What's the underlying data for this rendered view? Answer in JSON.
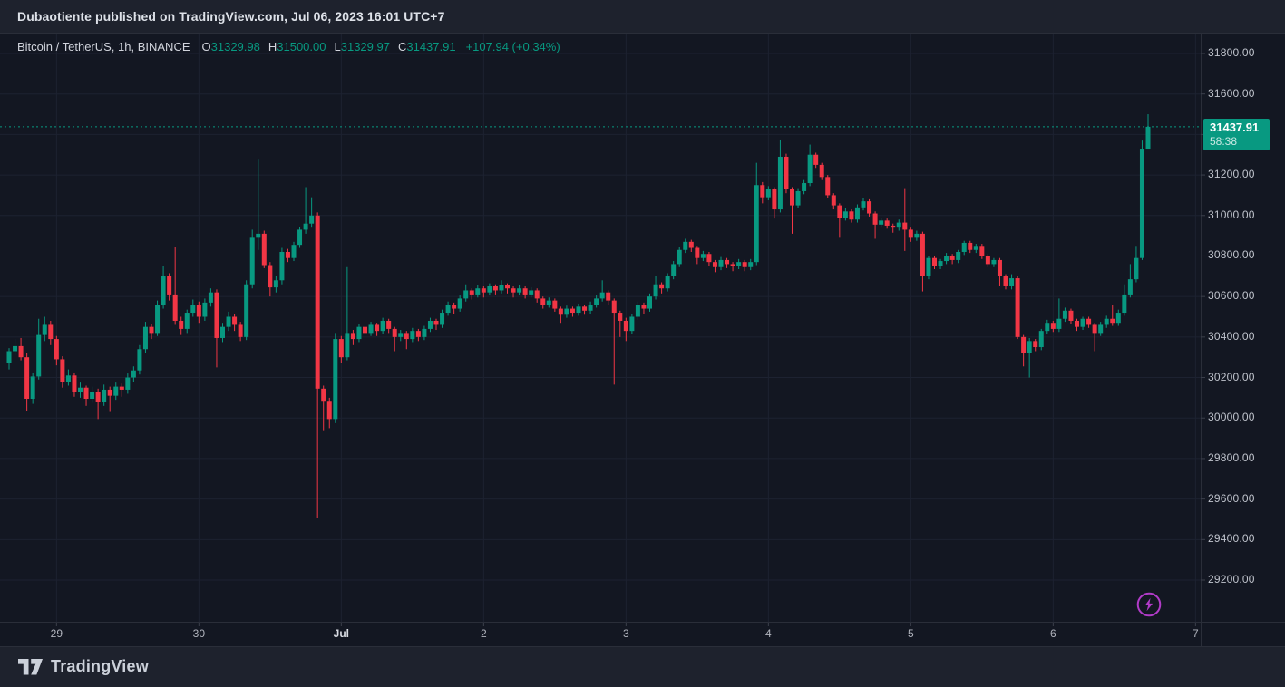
{
  "header": {
    "text": "Dubaotiente published on TradingView.com, Jul 06, 2023 16:01 UTC+7"
  },
  "legend": {
    "symbol_text": "Bitcoin / TetherUS, 1h, BINANCE",
    "ohlc": [
      {
        "label": "O",
        "value": "31329.98"
      },
      {
        "label": "H",
        "value": "31500.00"
      },
      {
        "label": "L",
        "value": "31329.97"
      },
      {
        "label": "C",
        "value": "31437.91"
      }
    ],
    "change": "+107.94 (+0.34%)"
  },
  "price_tag": {
    "price": "31437.91",
    "countdown": "58:38"
  },
  "footer": {
    "brand": "TradingView"
  },
  "colors": {
    "up": "#089981",
    "down": "#f23645",
    "price_line": "#089981",
    "tag_bg": "#089981",
    "grid": "#1d2231",
    "border": "#2a2e39",
    "tick": "#3c404c",
    "watermark": "#b13bc8",
    "page_bg": "#1e222d",
    "chart_bg": "#131722"
  },
  "chart_data": {
    "type": "candlestick",
    "symbol": "Bitcoin / TetherUS",
    "interval": "1h",
    "exchange": "BINANCE",
    "title": "Bitcoin / TetherUS, 1h, BINANCE",
    "last_price": 31437.91,
    "open": 31329.98,
    "high": 31500.0,
    "low": 31329.97,
    "close": 31437.91,
    "change": "+107.94 (+0.34%)",
    "price_line": {
      "value": 31437.91,
      "countdown": "58:38"
    },
    "grid": true,
    "ylim": [
      28990,
      31900
    ],
    "y_axis": {
      "ticks": [
        {
          "value": 31800,
          "label": "31800.00"
        },
        {
          "value": 31600,
          "label": "31600.00"
        },
        {
          "value": 31400,
          "label": ""
        },
        {
          "value": 31200,
          "label": "31200.00"
        },
        {
          "value": 31000,
          "label": "31000.00"
        },
        {
          "value": 30800,
          "label": "30800.00"
        },
        {
          "value": 30600,
          "label": "30600.00"
        },
        {
          "value": 30400,
          "label": "30400.00"
        },
        {
          "value": 30200,
          "label": "30200.00"
        },
        {
          "value": 30000,
          "label": "30000.00"
        },
        {
          "value": 29800,
          "label": "29800.00"
        },
        {
          "value": 29600,
          "label": "29600.00"
        },
        {
          "value": 29400,
          "label": "29400.00"
        },
        {
          "value": 29200,
          "label": "29200.00"
        }
      ]
    },
    "x_axis": {
      "ticks": [
        {
          "label": "29",
          "index": 8,
          "bold": false
        },
        {
          "label": "30",
          "index": 32,
          "bold": false
        },
        {
          "label": "Jul",
          "index": 56,
          "bold": true
        },
        {
          "label": "2",
          "index": 80,
          "bold": false
        },
        {
          "label": "3",
          "index": 104,
          "bold": false
        },
        {
          "label": "4",
          "index": 128,
          "bold": false
        },
        {
          "label": "5",
          "index": 152,
          "bold": false
        },
        {
          "label": "6",
          "index": 176,
          "bold": false
        },
        {
          "label": "7",
          "index": 200,
          "bold": false
        }
      ]
    },
    "candles": [
      [
        30270,
        30345,
        30240,
        30330
      ],
      [
        30330,
        30390,
        30310,
        30355
      ],
      [
        30355,
        30395,
        30285,
        30300
      ],
      [
        30300,
        30320,
        30035,
        30095
      ],
      [
        30095,
        30225,
        30070,
        30205
      ],
      [
        30205,
        30490,
        30190,
        30410
      ],
      [
        30410,
        30500,
        30380,
        30460
      ],
      [
        30460,
        30480,
        30360,
        30390
      ],
      [
        30390,
        30405,
        30260,
        30290
      ],
      [
        30290,
        30305,
        30150,
        30180
      ],
      [
        30180,
        30240,
        30160,
        30210
      ],
      [
        30210,
        30225,
        30105,
        30130
      ],
      [
        30130,
        30175,
        30100,
        30150
      ],
      [
        30150,
        30160,
        30060,
        30095
      ],
      [
        30095,
        30155,
        30075,
        30130
      ],
      [
        30130,
        30145,
        29995,
        30080
      ],
      [
        30080,
        30165,
        30060,
        30140
      ],
      [
        30140,
        30155,
        30030,
        30110
      ],
      [
        30110,
        30175,
        30090,
        30155
      ],
      [
        30155,
        30170,
        30105,
        30140
      ],
      [
        30140,
        30220,
        30120,
        30200
      ],
      [
        30200,
        30255,
        30180,
        30235
      ],
      [
        30235,
        30360,
        30215,
        30340
      ],
      [
        30340,
        30475,
        30320,
        30450
      ],
      [
        30450,
        30465,
        30390,
        30420
      ],
      [
        30420,
        30580,
        30405,
        30560
      ],
      [
        30560,
        30750,
        30540,
        30700
      ],
      [
        30700,
        30715,
        30580,
        30610
      ],
      [
        30610,
        30845,
        30460,
        30480
      ],
      [
        30480,
        30500,
        30410,
        30440
      ],
      [
        30440,
        30535,
        30420,
        30520
      ],
      [
        30520,
        30585,
        30500,
        30560
      ],
      [
        30560,
        30575,
        30470,
        30500
      ],
      [
        30500,
        30590,
        30480,
        30570
      ],
      [
        30570,
        30640,
        30550,
        30620
      ],
      [
        30620,
        30635,
        30250,
        30395
      ],
      [
        30395,
        30470,
        30375,
        30450
      ],
      [
        30450,
        30525,
        30430,
        30500
      ],
      [
        30500,
        30515,
        30430,
        30460
      ],
      [
        30460,
        30475,
        30380,
        30400
      ],
      [
        30400,
        30680,
        30385,
        30660
      ],
      [
        30660,
        30930,
        30640,
        30890
      ],
      [
        30890,
        31280,
        30830,
        30910
      ],
      [
        30910,
        30925,
        30740,
        30755
      ],
      [
        30755,
        30770,
        30600,
        30645
      ],
      [
        30645,
        30700,
        30620,
        30680
      ],
      [
        30680,
        30840,
        30660,
        30820
      ],
      [
        30820,
        30835,
        30770,
        30790
      ],
      [
        30790,
        30870,
        30775,
        30855
      ],
      [
        30855,
        30945,
        30840,
        30930
      ],
      [
        30930,
        31140,
        30910,
        30960
      ],
      [
        30960,
        31090,
        30940,
        31000
      ],
      [
        31000,
        31015,
        29505,
        30145
      ],
      [
        30145,
        30160,
        29940,
        30085
      ],
      [
        30085,
        30100,
        29950,
        29995
      ],
      [
        29995,
        30420,
        29975,
        30390
      ],
      [
        30390,
        30405,
        30270,
        30300
      ],
      [
        30300,
        30745,
        30285,
        30420
      ],
      [
        30420,
        30435,
        30360,
        30390
      ],
      [
        30390,
        30465,
        30375,
        30450
      ],
      [
        30450,
        30460,
        30395,
        30420
      ],
      [
        30420,
        30475,
        30405,
        30460
      ],
      [
        30460,
        30470,
        30405,
        30430
      ],
      [
        30430,
        30495,
        30415,
        30480
      ],
      [
        30480,
        30490,
        30420,
        30440
      ],
      [
        30440,
        30450,
        30330,
        30400
      ],
      [
        30400,
        30435,
        30380,
        30420
      ],
      [
        30420,
        30430,
        30340,
        30390
      ],
      [
        30390,
        30445,
        30375,
        30430
      ],
      [
        30430,
        30440,
        30380,
        30400
      ],
      [
        30400,
        30455,
        30385,
        30440
      ],
      [
        30440,
        30495,
        30425,
        30480
      ],
      [
        30480,
        30490,
        30435,
        30460
      ],
      [
        30460,
        30535,
        30445,
        30520
      ],
      [
        30520,
        30575,
        30505,
        30560
      ],
      [
        30560,
        30570,
        30515,
        30540
      ],
      [
        30540,
        30605,
        30525,
        30590
      ],
      [
        30590,
        30660,
        30575,
        30630
      ],
      [
        30630,
        30640,
        30585,
        30610
      ],
      [
        30610,
        30655,
        30595,
        30640
      ],
      [
        30640,
        30650,
        30595,
        30620
      ],
      [
        30620,
        30665,
        30605,
        30650
      ],
      [
        30650,
        30660,
        30610,
        30630
      ],
      [
        30630,
        30680,
        30615,
        30655
      ],
      [
        30655,
        30665,
        30615,
        30640
      ],
      [
        30640,
        30650,
        30595,
        30620
      ],
      [
        30620,
        30655,
        30605,
        30640
      ],
      [
        30640,
        30650,
        30590,
        30610
      ],
      [
        30610,
        30645,
        30595,
        30630
      ],
      [
        30630,
        30640,
        30570,
        30590
      ],
      [
        30590,
        30600,
        30540,
        30560
      ],
      [
        30560,
        30595,
        30545,
        30580
      ],
      [
        30580,
        30590,
        30525,
        30540
      ],
      [
        30540,
        30550,
        30470,
        30510
      ],
      [
        30510,
        30555,
        30495,
        30540
      ],
      [
        30540,
        30550,
        30500,
        30520
      ],
      [
        30520,
        30565,
        30505,
        30550
      ],
      [
        30550,
        30560,
        30510,
        30530
      ],
      [
        30530,
        30575,
        30515,
        30560
      ],
      [
        30560,
        30605,
        30545,
        30590
      ],
      [
        30590,
        30680,
        30575,
        30620
      ],
      [
        30620,
        30630,
        30560,
        30580
      ],
      [
        30580,
        30590,
        30165,
        30520
      ],
      [
        30520,
        30530,
        30400,
        30480
      ],
      [
        30480,
        30495,
        30380,
        30430
      ],
      [
        30430,
        30515,
        30415,
        30500
      ],
      [
        30500,
        30575,
        30485,
        30560
      ],
      [
        30560,
        30570,
        30515,
        30540
      ],
      [
        30540,
        30615,
        30525,
        30600
      ],
      [
        30600,
        30700,
        30585,
        30660
      ],
      [
        30660,
        30670,
        30615,
        30640
      ],
      [
        30640,
        30715,
        30625,
        30700
      ],
      [
        30700,
        30775,
        30685,
        30760
      ],
      [
        30760,
        30845,
        30745,
        30830
      ],
      [
        30830,
        30885,
        30815,
        30870
      ],
      [
        30870,
        30880,
        30820,
        30840
      ],
      [
        30840,
        30850,
        30760,
        30790
      ],
      [
        30790,
        30825,
        30775,
        30810
      ],
      [
        30810,
        30820,
        30750,
        30770
      ],
      [
        30770,
        30780,
        30720,
        30745
      ],
      [
        30745,
        30795,
        30730,
        30780
      ],
      [
        30780,
        30790,
        30740,
        30760
      ],
      [
        30760,
        30770,
        30725,
        30750
      ],
      [
        30750,
        30785,
        30735,
        30770
      ],
      [
        30770,
        30780,
        30725,
        30745
      ],
      [
        30745,
        30785,
        30730,
        30770
      ],
      [
        30770,
        31260,
        30755,
        31150
      ],
      [
        31150,
        31165,
        31060,
        31090
      ],
      [
        31090,
        31145,
        31075,
        31130
      ],
      [
        31130,
        31140,
        30985,
        31030
      ],
      [
        31030,
        31375,
        31015,
        31290
      ],
      [
        31290,
        31305,
        31110,
        31130
      ],
      [
        31130,
        31140,
        30910,
        31050
      ],
      [
        31050,
        31135,
        31035,
        31120
      ],
      [
        31120,
        31175,
        31105,
        31160
      ],
      [
        31160,
        31350,
        31145,
        31300
      ],
      [
        31300,
        31310,
        31235,
        31250
      ],
      [
        31250,
        31260,
        31175,
        31190
      ],
      [
        31190,
        31200,
        31085,
        31100
      ],
      [
        31100,
        31110,
        31030,
        31050
      ],
      [
        31050,
        31060,
        30890,
        30990
      ],
      [
        30990,
        31035,
        30975,
        31020
      ],
      [
        31020,
        31030,
        30965,
        30980
      ],
      [
        30980,
        31055,
        30965,
        31040
      ],
      [
        31040,
        31085,
        31025,
        31070
      ],
      [
        31070,
        31080,
        30995,
        31010
      ],
      [
        31010,
        31020,
        30885,
        30955
      ],
      [
        30955,
        30990,
        30940,
        30975
      ],
      [
        30975,
        30985,
        30935,
        30950
      ],
      [
        30950,
        30960,
        30915,
        30940
      ],
      [
        30940,
        30980,
        30925,
        30965
      ],
      [
        30965,
        31135,
        30825,
        30930
      ],
      [
        30930,
        30940,
        30870,
        30890
      ],
      [
        30890,
        30925,
        30875,
        30910
      ],
      [
        30910,
        30920,
        30625,
        30700
      ],
      [
        30700,
        30800,
        30685,
        30790
      ],
      [
        30790,
        30800,
        30735,
        30750
      ],
      [
        30750,
        30785,
        30735,
        30775
      ],
      [
        30775,
        30815,
        30760,
        30800
      ],
      [
        30800,
        30810,
        30760,
        30780
      ],
      [
        30780,
        30830,
        30765,
        30820
      ],
      [
        30820,
        30875,
        30805,
        30865
      ],
      [
        30865,
        30875,
        30815,
        30830
      ],
      [
        30830,
        30860,
        30815,
        30850
      ],
      [
        30850,
        30860,
        30785,
        30800
      ],
      [
        30800,
        30810,
        30745,
        30760
      ],
      [
        30760,
        30790,
        30745,
        30780
      ],
      [
        30780,
        30790,
        30650,
        30700
      ],
      [
        30700,
        30710,
        30635,
        30650
      ],
      [
        30650,
        30710,
        30635,
        30690
      ],
      [
        30690,
        30700,
        30390,
        30400
      ],
      [
        30400,
        30410,
        30255,
        30320
      ],
      [
        30320,
        30395,
        30200,
        30380
      ],
      [
        30380,
        30390,
        30330,
        30350
      ],
      [
        30350,
        30440,
        30335,
        30430
      ],
      [
        30430,
        30485,
        30415,
        30470
      ],
      [
        30470,
        30480,
        30425,
        30440
      ],
      [
        30440,
        30590,
        30425,
        30490
      ],
      [
        30490,
        30545,
        30475,
        30530
      ],
      [
        30530,
        30540,
        30465,
        30480
      ],
      [
        30480,
        30490,
        30430,
        30450
      ],
      [
        30450,
        30500,
        30435,
        30490
      ],
      [
        30490,
        30500,
        30445,
        30460
      ],
      [
        30460,
        30470,
        30330,
        30420
      ],
      [
        30420,
        30475,
        30405,
        30460
      ],
      [
        30460,
        30505,
        30445,
        30490
      ],
      [
        30490,
        30560,
        30455,
        30470
      ],
      [
        30470,
        30535,
        30455,
        30520
      ],
      [
        30520,
        30660,
        30505,
        30610
      ],
      [
        30610,
        30760,
        30595,
        30685
      ],
      [
        30685,
        30850,
        30670,
        30790
      ],
      [
        30790,
        31370,
        30780,
        31330
      ],
      [
        31329.98,
        31500,
        31329.97,
        31437.91
      ]
    ]
  }
}
